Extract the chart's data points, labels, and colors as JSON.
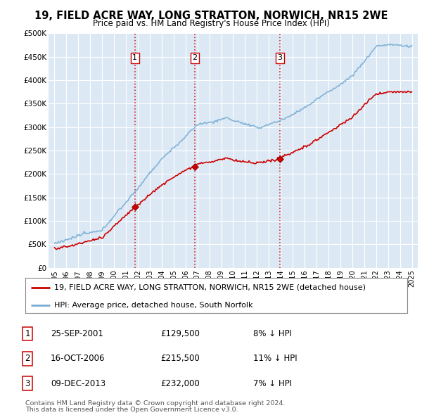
{
  "title": "19, FIELD ACRE WAY, LONG STRATTON, NORWICH, NR15 2WE",
  "subtitle": "Price paid vs. HM Land Registry's House Price Index (HPI)",
  "background_color": "#ffffff",
  "plot_bg_color": "#dce9f5",
  "grid_color": "#ffffff",
  "hpi_color": "#7aadd4",
  "price_color": "#cc0000",
  "dashed_line_color": "#cc0000",
  "sale_points": [
    {
      "label": "1",
      "date_num": 2001.75,
      "price": 129500
    },
    {
      "label": "2",
      "date_num": 2006.79,
      "price": 215500
    },
    {
      "label": "3",
      "date_num": 2013.93,
      "price": 232000
    }
  ],
  "legend_entries": [
    "19, FIELD ACRE WAY, LONG STRATTON, NORWICH, NR15 2WE (detached house)",
    "HPI: Average price, detached house, South Norfolk"
  ],
  "table_rows": [
    [
      "1",
      "25-SEP-2001",
      "£129,500",
      "8% ↓ HPI"
    ],
    [
      "2",
      "16-OCT-2006",
      "£215,500",
      "11% ↓ HPI"
    ],
    [
      "3",
      "09-DEC-2013",
      "£232,000",
      "7% ↓ HPI"
    ]
  ],
  "footer": [
    "Contains HM Land Registry data © Crown copyright and database right 2024.",
    "This data is licensed under the Open Government Licence v3.0."
  ],
  "ylim": [
    0,
    500000
  ],
  "xlim": [
    1994.5,
    2025.5
  ],
  "yticks": [
    0,
    50000,
    100000,
    150000,
    200000,
    250000,
    300000,
    350000,
    400000,
    450000,
    500000
  ],
  "ytick_labels": [
    "£0",
    "£50K",
    "£100K",
    "£150K",
    "£200K",
    "£250K",
    "£300K",
    "£350K",
    "£400K",
    "£450K",
    "£500K"
  ],
  "xticks": [
    1995,
    1996,
    1997,
    1998,
    1999,
    2000,
    2001,
    2002,
    2003,
    2004,
    2005,
    2006,
    2007,
    2008,
    2009,
    2010,
    2011,
    2012,
    2013,
    2014,
    2015,
    2016,
    2017,
    2018,
    2019,
    2020,
    2021,
    2022,
    2023,
    2024,
    2025
  ]
}
